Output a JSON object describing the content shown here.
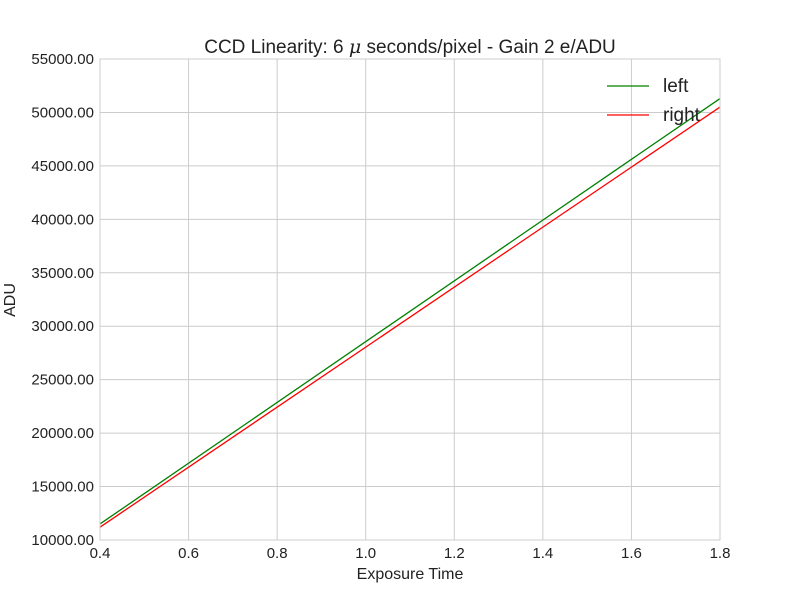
{
  "chart_data": {
    "type": "line",
    "title_prefix": "CCD Linearity:  6 ",
    "title_mu": "μ",
    "title_suffix": " seconds/pixel - Gain 2 e/ADU",
    "xlabel": "Exposure Time",
    "ylabel": "ADU",
    "xlim": [
      0.4,
      1.8
    ],
    "ylim": [
      10000,
      55000
    ],
    "xticks": [
      0.4,
      0.6,
      0.8,
      1.0,
      1.2,
      1.4,
      1.6,
      1.8
    ],
    "xtick_labels": [
      "0.4",
      "0.6",
      "0.8",
      "1.0",
      "1.2",
      "1.4",
      "1.6",
      "1.8"
    ],
    "yticks": [
      10000,
      15000,
      20000,
      25000,
      30000,
      35000,
      40000,
      45000,
      50000,
      55000
    ],
    "ytick_labels": [
      "10000.00",
      "15000.00",
      "20000.00",
      "25000.00",
      "30000.00",
      "35000.00",
      "40000.00",
      "45000.00",
      "50000.00",
      "55000.00"
    ],
    "grid": true,
    "legend_position": "top-right",
    "series": [
      {
        "name": "left",
        "color": "#008000",
        "x": [
          0.4,
          1.8
        ],
        "y": [
          11500,
          51300
        ]
      },
      {
        "name": "right",
        "color": "#ff0000",
        "x": [
          0.4,
          1.8
        ],
        "y": [
          11200,
          50500
        ]
      }
    ]
  }
}
